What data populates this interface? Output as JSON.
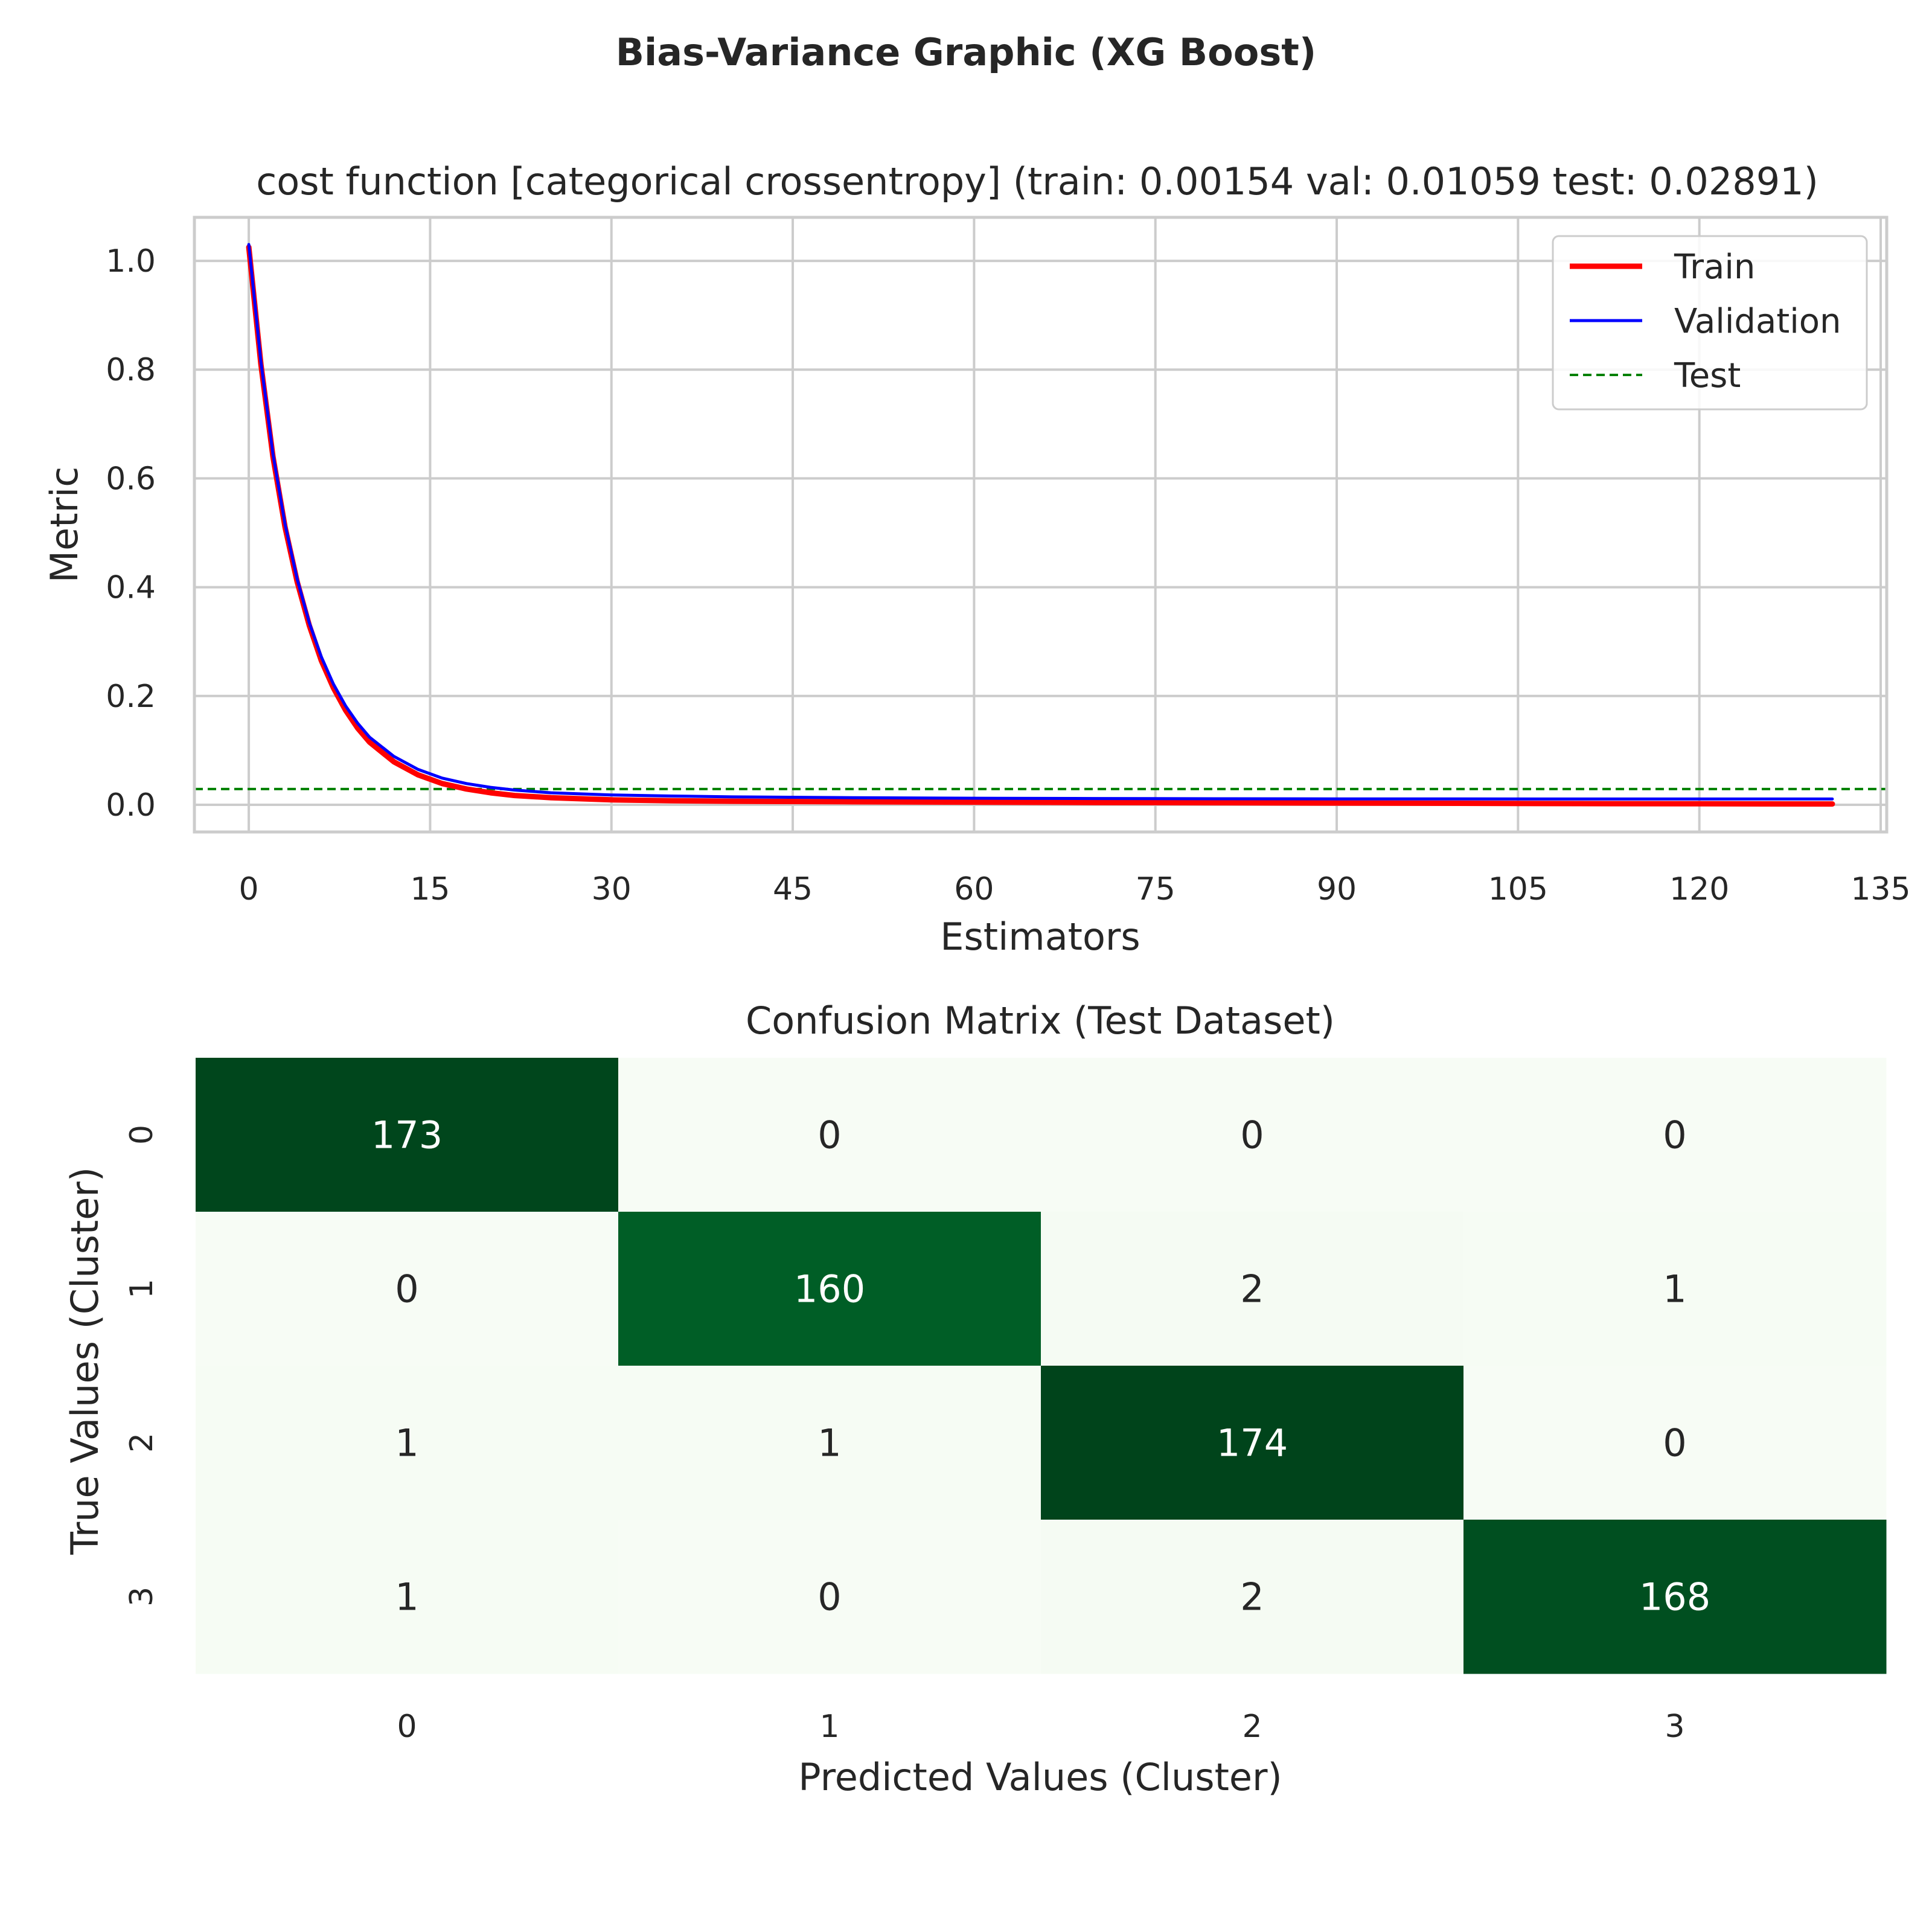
{
  "figure": {
    "suptitle": "Bias-Variance Graphic (XG Boost)"
  },
  "chart_data": [
    {
      "type": "line",
      "title": "cost function [categorical crossentropy] (train: 0.00154  val: 0.01059  test: 0.02891)",
      "xlabel": "Estimators",
      "ylabel": "Metric",
      "xlim": [
        -4.5,
        135.5
      ],
      "ylim": [
        -0.05,
        1.08
      ],
      "xticks": [
        "0",
        "15",
        "30",
        "45",
        "60",
        "75",
        "90",
        "105",
        "120",
        "135"
      ],
      "yticks": [
        "0.0",
        "0.2",
        "0.4",
        "0.6",
        "0.8",
        "1.0"
      ],
      "grid": true,
      "legend": "top-right",
      "series": [
        {
          "name": "Train",
          "color": "#ff0000",
          "style": "solid-thick",
          "x": [
            0,
            1,
            2,
            3,
            4,
            5,
            6,
            7,
            8,
            9,
            10,
            12,
            14,
            16,
            18,
            20,
            22,
            25,
            30,
            35,
            40,
            50,
            60,
            70,
            80,
            90,
            100,
            110,
            120,
            131
          ],
          "y": [
            1.025,
            0.81,
            0.64,
            0.51,
            0.41,
            0.33,
            0.265,
            0.215,
            0.174,
            0.141,
            0.115,
            0.079,
            0.055,
            0.039,
            0.029,
            0.022,
            0.017,
            0.013,
            0.009,
            0.0075,
            0.0065,
            0.0055,
            0.0048,
            0.0042,
            0.0037,
            0.0032,
            0.0027,
            0.0022,
            0.0018,
            0.00154
          ]
        },
        {
          "name": "Validation",
          "color": "#0000ff",
          "style": "solid-thin",
          "x": [
            0,
            1,
            2,
            3,
            4,
            5,
            6,
            7,
            8,
            9,
            10,
            12,
            14,
            16,
            18,
            20,
            22,
            25,
            30,
            35,
            40,
            50,
            60,
            70,
            80,
            90,
            100,
            110,
            120,
            131
          ],
          "y": [
            1.03,
            0.815,
            0.645,
            0.515,
            0.415,
            0.335,
            0.272,
            0.222,
            0.182,
            0.15,
            0.124,
            0.089,
            0.065,
            0.049,
            0.039,
            0.032,
            0.027,
            0.022,
            0.018,
            0.016,
            0.0145,
            0.013,
            0.012,
            0.0115,
            0.011,
            0.0108,
            0.0107,
            0.0106,
            0.01059,
            0.01059
          ]
        },
        {
          "name": "Test",
          "color": "#008000",
          "style": "dashed",
          "hline": 0.02891
        }
      ]
    },
    {
      "type": "heatmap",
      "title": "Confusion Matrix (Test Dataset)",
      "xlabel": "Predicted Values (Cluster)",
      "ylabel": "True Values (Cluster)",
      "xticklabels": [
        "0",
        "1",
        "2",
        "3"
      ],
      "yticklabels": [
        "0",
        "1",
        "2",
        "3"
      ],
      "colormap": "Greens",
      "values": [
        [
          173,
          0,
          0,
          0
        ],
        [
          0,
          160,
          2,
          1
        ],
        [
          1,
          1,
          174,
          0
        ],
        [
          1,
          0,
          2,
          168
        ]
      ]
    }
  ]
}
